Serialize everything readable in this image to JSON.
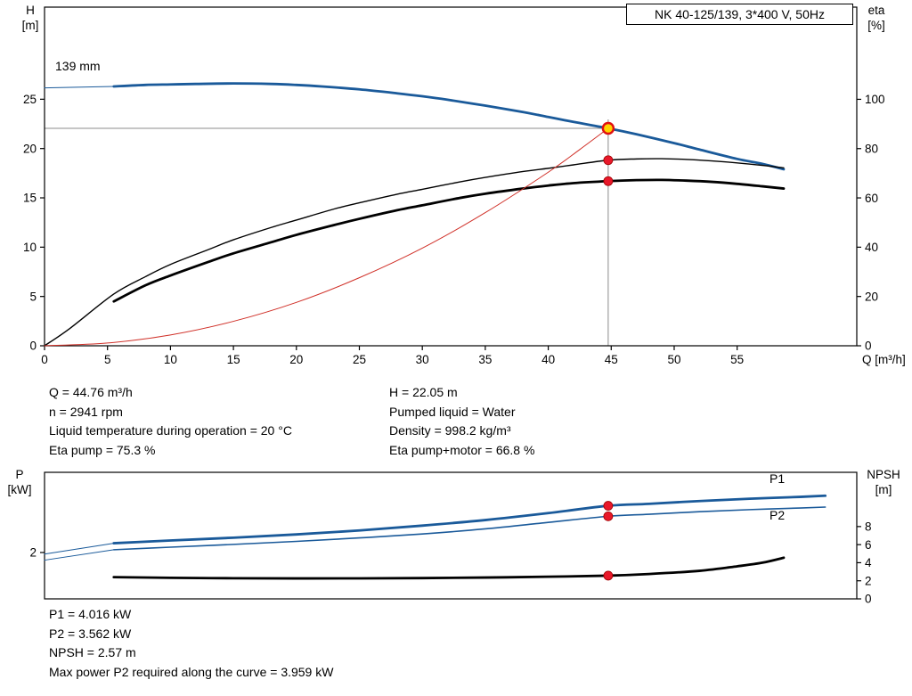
{
  "colors": {
    "blue": "#1a5a9a",
    "black": "#000000",
    "red": "#d03028",
    "ref_line": "#8c8c8c",
    "duty_fill": "#ffd400",
    "duty_stroke": "#e01010",
    "dot_red": "#e8182a",
    "dot_red_edge": "#a00000"
  },
  "axis_corner_labels": {
    "top_left": [
      "H",
      "[m]"
    ],
    "top_right": [
      "eta",
      "[%]"
    ],
    "bottom_left": [
      "P",
      "[kW]"
    ],
    "bottom_right": [
      "NPSH",
      "[m]"
    ]
  },
  "info_top": {
    "col1": [
      "Q = 44.76 m³/h",
      "n = 2941 rpm",
      "Liquid temperature during operation = 20 °C",
      "Eta pump = 75.3 %"
    ],
    "col2": [
      "H = 22.05 m",
      "Pumped liquid = Water",
      "Density = 998.2 kg/m³",
      "Eta pump+motor = 66.8 %"
    ]
  },
  "info_bottom": [
    "P1 = 4.016 kW",
    "P2 = 3.562 kW",
    "NPSH = 2.57 m",
    "Max power P2 required along the curve = 3.959 kW"
  ],
  "chart_data": [
    {
      "type": "line",
      "title": "NK 40-125/139, 3*400 V, 50Hz",
      "x_axis": {
        "label": "Q [m³/h]",
        "min": 0,
        "max": 64.5,
        "ticks": [
          0,
          5,
          10,
          15,
          20,
          25,
          30,
          35,
          40,
          45,
          50,
          55
        ]
      },
      "y_left": {
        "label": "H [m]",
        "min": 0,
        "max": 34.34,
        "ticks": [
          0,
          5,
          10,
          15,
          20,
          25
        ]
      },
      "y_right": {
        "label": "eta [%]",
        "min": 0,
        "max": 137.4,
        "ticks": [
          0,
          20,
          40,
          60,
          80,
          100
        ]
      },
      "duty_point": {
        "Q": 44.76,
        "H": 22.05,
        "eta_pump": 75.3,
        "eta_pump_motor": 66.8
      },
      "ref_lines": {
        "q": 44.76,
        "h": 22.05
      },
      "series": [
        {
          "name": "qh-curve",
          "label": "139 mm",
          "axis": "left",
          "color": "blue",
          "width": 2.8,
          "points": [
            [
              5.5,
              26.3
            ],
            [
              8,
              26.45
            ],
            [
              10,
              26.5
            ],
            [
              12,
              26.55
            ],
            [
              15,
              26.6
            ],
            [
              18,
              26.55
            ],
            [
              20,
              26.45
            ],
            [
              22,
              26.3
            ],
            [
              25,
              26.0
            ],
            [
              28,
              25.6
            ],
            [
              30,
              25.3
            ],
            [
              32,
              24.95
            ],
            [
              35,
              24.35
            ],
            [
              38,
              23.7
            ],
            [
              40,
              23.2
            ],
            [
              42,
              22.7
            ],
            [
              44.76,
              22.05
            ],
            [
              47,
              21.45
            ],
            [
              50,
              20.55
            ],
            [
              52,
              19.9
            ],
            [
              55,
              18.95
            ],
            [
              57,
              18.45
            ],
            [
              58.7,
              17.9
            ]
          ]
        },
        {
          "name": "qh-lead-line",
          "axis": "left",
          "color": "blue",
          "width": 1,
          "points": [
            [
              0,
              26.15
            ],
            [
              5.5,
              26.3
            ]
          ]
        },
        {
          "name": "eta-pump-curve",
          "axis": "right",
          "color": "black",
          "width": 1.4,
          "points": [
            [
              0,
              0
            ],
            [
              2,
              7
            ],
            [
              5.5,
              21
            ],
            [
              8,
              28
            ],
            [
              10,
              33
            ],
            [
              13,
              39
            ],
            [
              15,
              43
            ],
            [
              18,
              48
            ],
            [
              20,
              51
            ],
            [
              23,
              55.5
            ],
            [
              25,
              58
            ],
            [
              28,
              61.5
            ],
            [
              30,
              63.5
            ],
            [
              33,
              66.5
            ],
            [
              35,
              68.3
            ],
            [
              38,
              70.7
            ],
            [
              40,
              72
            ],
            [
              42,
              73.4
            ],
            [
              44.76,
              75.3
            ],
            [
              47,
              75.8
            ],
            [
              49,
              75.9
            ],
            [
              51,
              75.6
            ],
            [
              53,
              75.0
            ],
            [
              55,
              74.2
            ],
            [
              57,
              73.2
            ],
            [
              58.7,
              72.2
            ]
          ]
        },
        {
          "name": "eta-pump-motor-curve",
          "axis": "right",
          "color": "black",
          "width": 2.8,
          "points": [
            [
              5.5,
              18
            ],
            [
              8,
              24.5
            ],
            [
              10,
              28.5
            ],
            [
              13,
              34
            ],
            [
              15,
              37.5
            ],
            [
              18,
              42
            ],
            [
              20,
              45
            ],
            [
              23,
              49
            ],
            [
              25,
              51.5
            ],
            [
              28,
              55
            ],
            [
              30,
              57
            ],
            [
              33,
              60
            ],
            [
              35,
              61.7
            ],
            [
              38,
              63.8
            ],
            [
              40,
              65
            ],
            [
              42,
              66
            ],
            [
              44.76,
              66.8
            ],
            [
              47,
              67.2
            ],
            [
              49,
              67.3
            ],
            [
              51,
              67.0
            ],
            [
              53,
              66.5
            ],
            [
              55,
              65.7
            ],
            [
              57,
              64.7
            ],
            [
              58.7,
              63.8
            ]
          ]
        },
        {
          "name": "system-curve",
          "axis": "left",
          "color": "red",
          "width": 1,
          "points": [
            [
              0,
              0
            ],
            [
              5,
              0.28
            ],
            [
              10,
              1.1
            ],
            [
              15,
              2.48
            ],
            [
              20,
              4.4
            ],
            [
              25,
              6.9
            ],
            [
              30,
              9.9
            ],
            [
              35,
              13.5
            ],
            [
              40,
              17.6
            ],
            [
              42.5,
              19.9
            ],
            [
              44.76,
              22.05
            ]
          ]
        }
      ],
      "markers": [
        {
          "q": 44.76,
          "value": 22.05,
          "axis": "left",
          "type": "duty"
        },
        {
          "q": 44.76,
          "value": 75.3,
          "axis": "right",
          "type": "dot"
        },
        {
          "q": 44.76,
          "value": 66.8,
          "axis": "right",
          "type": "dot"
        }
      ]
    },
    {
      "type": "line",
      "title": "",
      "x_axis": {
        "label": "",
        "min": 0,
        "max": 64.5,
        "ticks": []
      },
      "y_left": {
        "label": "P [kW]",
        "min": 0,
        "max": 5.46,
        "ticks": [
          2
        ]
      },
      "y_right": {
        "label": "NPSH [m]",
        "min": 0,
        "max": 14,
        "ticks": [
          0,
          2,
          4,
          6,
          8
        ]
      },
      "duty_point": {
        "P1": 4.016,
        "P2": 3.562,
        "NPSH": 2.57
      },
      "series": [
        {
          "name": "p1-curve",
          "label": "P1",
          "axis": "left",
          "color": "blue",
          "width": 2.8,
          "points": [
            [
              5.5,
              2.4
            ],
            [
              10,
              2.52
            ],
            [
              15,
              2.64
            ],
            [
              20,
              2.78
            ],
            [
              25,
              2.95
            ],
            [
              30,
              3.16
            ],
            [
              35,
              3.4
            ],
            [
              40,
              3.7
            ],
            [
              44.76,
              4.016
            ],
            [
              48,
              4.1
            ],
            [
              52,
              4.22
            ],
            [
              56,
              4.32
            ],
            [
              60,
              4.4
            ],
            [
              62,
              4.45
            ]
          ]
        },
        {
          "name": "p1-lead-line",
          "axis": "left",
          "color": "blue",
          "width": 1,
          "points": [
            [
              0,
              1.93
            ],
            [
              5.5,
              2.4
            ]
          ]
        },
        {
          "name": "p2-curve",
          "label": "P2",
          "axis": "left",
          "color": "blue",
          "width": 1.6,
          "points": [
            [
              5.5,
              2.12
            ],
            [
              10,
              2.23
            ],
            [
              15,
              2.35
            ],
            [
              20,
              2.48
            ],
            [
              25,
              2.63
            ],
            [
              30,
              2.8
            ],
            [
              35,
              3.02
            ],
            [
              40,
              3.3
            ],
            [
              44.76,
              3.562
            ],
            [
              48,
              3.65
            ],
            [
              52,
              3.76
            ],
            [
              56,
              3.85
            ],
            [
              60,
              3.92
            ],
            [
              62,
              3.96
            ]
          ]
        },
        {
          "name": "p2-lead-line",
          "axis": "left",
          "color": "blue",
          "width": 1,
          "points": [
            [
              0,
              1.67
            ],
            [
              5.5,
              2.12
            ]
          ]
        },
        {
          "name": "npsh-curve",
          "axis": "right",
          "color": "black",
          "width": 2.8,
          "points": [
            [
              5.5,
              2.4
            ],
            [
              10,
              2.33
            ],
            [
              15,
              2.28
            ],
            [
              20,
              2.26
            ],
            [
              25,
              2.27
            ],
            [
              30,
              2.3
            ],
            [
              35,
              2.36
            ],
            [
              40,
              2.45
            ],
            [
              44.76,
              2.57
            ],
            [
              48,
              2.75
            ],
            [
              52,
              3.1
            ],
            [
              55,
              3.6
            ],
            [
              57,
              4.0
            ],
            [
              58.7,
              4.55
            ]
          ]
        }
      ],
      "markers": [
        {
          "q": 44.76,
          "value": 4.016,
          "axis": "left",
          "type": "dot"
        },
        {
          "q": 44.76,
          "value": 3.562,
          "axis": "left",
          "type": "dot"
        },
        {
          "q": 44.76,
          "value": 2.57,
          "axis": "right",
          "type": "dot"
        }
      ]
    }
  ]
}
